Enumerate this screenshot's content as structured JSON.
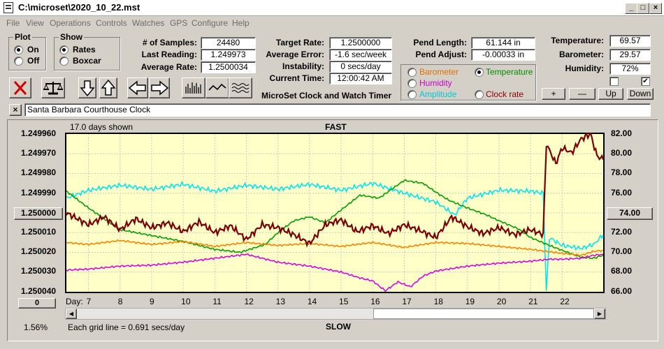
{
  "window": {
    "title": "C:\\microset\\2020_10_22.mst"
  },
  "menu": [
    "File",
    "View",
    "Operations",
    "Controls",
    "Watches",
    "GPS",
    "Configure",
    "Help"
  ],
  "plot_group": {
    "title": "Plot",
    "options": [
      "On",
      "Off"
    ],
    "selected": "On"
  },
  "show_group": {
    "title": "Show",
    "options": [
      "Rates",
      "Boxcar"
    ],
    "selected": "Rates"
  },
  "stats": {
    "samples_label": "# of Samples:",
    "samples": "24480",
    "last_label": "Last Reading:",
    "last": "1.249973",
    "avg_rate_label": "Average Rate:",
    "avg_rate": "1.2500034",
    "target_label": "Target Rate:",
    "target": "1.2500000",
    "avg_err_label": "Average Error:",
    "avg_err": "-1.6 sec/week",
    "instab_label": "Instability:",
    "instab": "0 secs/day",
    "time_label": "Current Time:",
    "time": "12:00:42 AM",
    "pend_len_label": "Pend Length:",
    "pend_len": "61.144 in",
    "pend_adj_label": "Pend Adjust:",
    "pend_adj": "-0.00033 in",
    "temp_label": "Temperature:",
    "temp": "69.57",
    "baro_label": "Barometer:",
    "baro": "29.57",
    "humid_label": "Humidity:",
    "humid": "72%"
  },
  "app_title": "MicroSet Clock and Watch Timer",
  "sensor_options": [
    {
      "label": "Barometer",
      "color": "#e07000",
      "selected": false
    },
    {
      "label": "Temperature",
      "color": "#008c00",
      "selected": true
    },
    {
      "label": "Humidity",
      "color": "#c800c8",
      "selected": false
    },
    {
      "label": "Amplitude",
      "color": "#00c8d8",
      "selected": false
    },
    {
      "label": "Clock rate",
      "color": "#8b0000",
      "selected": false
    }
  ],
  "adjust_buttons": [
    "+",
    "—",
    "Up",
    "Down"
  ],
  "clock_name": "Santa Barbara Courthouse Clock",
  "graph": {
    "days_shown": "17.0 days shown",
    "fast_label": "FAST",
    "slow_label": "SLOW",
    "grid_note": "Each grid line = 0.691 secs/day",
    "percent": "1.56%",
    "left_button": "1.250000",
    "right_button": "74.00",
    "bottom_left_button": "0",
    "day_label": "Day:"
  },
  "chart_data": {
    "type": "line",
    "x_ticks": [
      "7",
      "8",
      "9",
      "10",
      "11",
      "12",
      "13",
      "14",
      "15",
      "16",
      "17",
      "18",
      "19",
      "20",
      "21",
      "22"
    ],
    "y_left_ticks": [
      "1.249960",
      "1.249970",
      "1.249980",
      "1.249990",
      "1.250000",
      "1.250010",
      "1.250020",
      "1.250030",
      "1.250040"
    ],
    "y_right_ticks": [
      "82.00",
      "80.00",
      "78.00",
      "76.00",
      "74.00",
      "72.00",
      "70.00",
      "68.00",
      "66.00"
    ],
    "ylim_right": [
      66,
      82
    ],
    "xlim": [
      6.3,
      23.3
    ],
    "grid": true,
    "series": [
      {
        "color": "#00e5ee",
        "values": [
          [
            6.3,
            75.5
          ],
          [
            7,
            76.3
          ],
          [
            8,
            76.8
          ],
          [
            9,
            76.4
          ],
          [
            10,
            76.9
          ],
          [
            11,
            76.2
          ],
          [
            12,
            76.8
          ],
          [
            13,
            76.4
          ],
          [
            14,
            76.9
          ],
          [
            15,
            76.3
          ],
          [
            16,
            77.0
          ],
          [
            17,
            76.0
          ],
          [
            18,
            75.1
          ],
          [
            18.6,
            73.8
          ],
          [
            19,
            75.5
          ],
          [
            20,
            76.3
          ],
          [
            21,
            76.2
          ],
          [
            21.4,
            76.0
          ],
          [
            21.5,
            66.0
          ],
          [
            21.6,
            71.5
          ],
          [
            22,
            70.7
          ],
          [
            22.6,
            70.4
          ],
          [
            23,
            70.8
          ],
          [
            23.3,
            71.8
          ]
        ]
      },
      {
        "color": "#00a000",
        "values": [
          [
            6.3,
            76.2
          ],
          [
            7,
            74.5
          ],
          [
            8,
            72.3
          ],
          [
            9,
            71.7
          ],
          [
            10,
            71.1
          ],
          [
            11,
            70.3
          ],
          [
            11.8,
            70.0
          ],
          [
            12.6,
            70.8
          ],
          [
            13,
            72.0
          ],
          [
            13.5,
            73.2
          ],
          [
            14,
            73.6
          ],
          [
            14.5,
            73.0
          ],
          [
            15,
            74.3
          ],
          [
            15.6,
            75.8
          ],
          [
            16.2,
            75.5
          ],
          [
            17,
            77.3
          ],
          [
            17.6,
            77.0
          ],
          [
            18,
            76.1
          ],
          [
            18.4,
            75.3
          ],
          [
            19,
            74.5
          ],
          [
            19.6,
            73.8
          ],
          [
            20,
            73.2
          ],
          [
            20.6,
            72.4
          ],
          [
            21,
            71.5
          ],
          [
            21.6,
            70.7
          ],
          [
            22,
            70.2
          ],
          [
            22.6,
            69.5
          ],
          [
            23,
            69.4
          ],
          [
            23.3,
            69.7
          ]
        ]
      },
      {
        "color": "#ff8000",
        "values": [
          [
            6.3,
            71.0
          ],
          [
            7,
            70.8
          ],
          [
            8,
            71.2
          ],
          [
            9,
            70.8
          ],
          [
            10,
            71.1
          ],
          [
            11,
            70.6
          ],
          [
            12,
            71.0
          ],
          [
            13,
            70.7
          ],
          [
            14,
            70.9
          ],
          [
            15,
            70.6
          ],
          [
            16,
            71.0
          ],
          [
            17,
            70.5
          ],
          [
            18,
            71.0
          ],
          [
            19,
            70.9
          ],
          [
            20,
            70.6
          ],
          [
            21,
            70.3
          ],
          [
            22,
            69.9
          ],
          [
            22.6,
            69.7
          ],
          [
            23,
            70.1
          ],
          [
            23.3,
            70.2
          ]
        ]
      },
      {
        "color": "#e000e0",
        "values": [
          [
            6.3,
            68.2
          ],
          [
            7,
            68.3
          ],
          [
            8,
            68.6
          ],
          [
            9,
            68.7
          ],
          [
            10,
            69.0
          ],
          [
            11,
            69.4
          ],
          [
            12,
            69.8
          ],
          [
            12.5,
            69.4
          ],
          [
            13,
            69.0
          ],
          [
            14,
            68.6
          ],
          [
            15,
            68.0
          ],
          [
            15.6,
            67.4
          ],
          [
            16,
            67.1
          ],
          [
            16.4,
            66.1
          ],
          [
            16.8,
            67.0
          ],
          [
            17.2,
            66.5
          ],
          [
            17.6,
            67.6
          ],
          [
            18,
            68.1
          ],
          [
            19,
            68.6
          ],
          [
            20,
            68.9
          ],
          [
            21,
            69.1
          ],
          [
            21.6,
            69.3
          ],
          [
            22,
            69.3
          ],
          [
            22.6,
            69.4
          ],
          [
            23,
            69.7
          ],
          [
            23.3,
            69.8
          ]
        ]
      },
      {
        "color": "#7a0000",
        "values": [
          [
            6.3,
            74.0
          ],
          [
            7,
            72.8
          ],
          [
            7.5,
            73.6
          ],
          [
            8,
            72.3
          ],
          [
            8.5,
            73.4
          ],
          [
            9,
            72.5
          ],
          [
            9.5,
            73.0
          ],
          [
            10,
            72.1
          ],
          [
            10.5,
            73.1
          ],
          [
            11,
            72.0
          ],
          [
            11.5,
            72.7
          ],
          [
            12,
            71.3
          ],
          [
            12.5,
            72.8
          ],
          [
            13,
            72.5
          ],
          [
            13.5,
            71.8
          ],
          [
            14,
            70.9
          ],
          [
            14.5,
            72.8
          ],
          [
            15,
            73.3
          ],
          [
            15.5,
            72.1
          ],
          [
            16,
            72.7
          ],
          [
            16.5,
            71.9
          ],
          [
            17,
            72.8
          ],
          [
            17.5,
            72.2
          ],
          [
            18,
            71.5
          ],
          [
            18.5,
            73.6
          ],
          [
            19,
            72.6
          ],
          [
            19.5,
            71.9
          ],
          [
            20,
            72.5
          ],
          [
            20.5,
            71.8
          ],
          [
            21,
            72.3
          ],
          [
            21.4,
            71.8
          ],
          [
            21.5,
            81.0
          ],
          [
            21.8,
            79.0
          ],
          [
            22,
            80.6
          ],
          [
            22.3,
            80.1
          ],
          [
            22.6,
            81.5
          ],
          [
            22.9,
            82.0
          ],
          [
            23.1,
            79.8
          ],
          [
            23.3,
            79.4
          ]
        ]
      }
    ]
  }
}
